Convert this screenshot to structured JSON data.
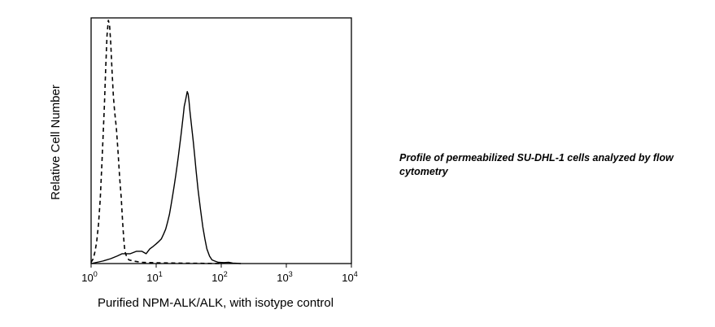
{
  "chart_data": {
    "type": "line",
    "title": "",
    "xlabel": "Purified NPM-ALK/ALK, with isotype control",
    "ylabel": "Relative Cell Number",
    "x_scale": "log",
    "xlim": [
      1,
      10000
    ],
    "ylim": [
      0,
      100
    ],
    "grid": false,
    "legend": "none",
    "x_ticks": [
      {
        "base": "10",
        "exp": "0",
        "value": 1
      },
      {
        "base": "10",
        "exp": "1",
        "value": 10
      },
      {
        "base": "10",
        "exp": "2",
        "value": 100
      },
      {
        "base": "10",
        "exp": "3",
        "value": 1000
      },
      {
        "base": "10",
        "exp": "4",
        "value": 10000
      }
    ],
    "series": [
      {
        "style": "dashed",
        "color": "#000000",
        "points": [
          [
            1.0,
            0.5
          ],
          [
            1.08,
            2
          ],
          [
            1.15,
            5
          ],
          [
            1.22,
            9
          ],
          [
            1.3,
            16
          ],
          [
            1.38,
            26
          ],
          [
            1.45,
            38
          ],
          [
            1.52,
            50
          ],
          [
            1.6,
            64
          ],
          [
            1.68,
            80
          ],
          [
            1.76,
            93
          ],
          [
            1.84,
            99
          ],
          [
            1.92,
            97
          ],
          [
            2.0,
            90
          ],
          [
            2.1,
            78
          ],
          [
            2.2,
            68
          ],
          [
            2.3,
            62
          ],
          [
            2.45,
            55
          ],
          [
            2.6,
            45
          ],
          [
            2.75,
            35
          ],
          [
            2.9,
            27
          ],
          [
            3.0,
            20
          ],
          [
            3.1,
            14
          ],
          [
            3.2,
            9
          ],
          [
            3.3,
            5
          ],
          [
            3.5,
            3
          ],
          [
            3.8,
            1.5
          ],
          [
            4.5,
            1
          ],
          [
            6,
            0.5
          ],
          [
            10,
            0.3
          ],
          [
            20,
            0.2
          ],
          [
            100,
            0
          ]
        ]
      },
      {
        "style": "solid",
        "color": "#000000",
        "points": [
          [
            1.0,
            0
          ],
          [
            1.5,
            1
          ],
          [
            2.0,
            2
          ],
          [
            2.5,
            3
          ],
          [
            3.0,
            4
          ],
          [
            4.0,
            4
          ],
          [
            5.0,
            5
          ],
          [
            6.0,
            5
          ],
          [
            7.0,
            4
          ],
          [
            8.0,
            6
          ],
          [
            9.0,
            7
          ],
          [
            10.0,
            8
          ],
          [
            11.0,
            9
          ],
          [
            12.0,
            10
          ],
          [
            13.0,
            12
          ],
          [
            14.0,
            14
          ],
          [
            15.0,
            17
          ],
          [
            16.0,
            20
          ],
          [
            17.0,
            24
          ],
          [
            18.0,
            28
          ],
          [
            19.0,
            32
          ],
          [
            20.0,
            36
          ],
          [
            21.0,
            40
          ],
          [
            22.0,
            44
          ],
          [
            23.0,
            48
          ],
          [
            24.0,
            52
          ],
          [
            25.0,
            56
          ],
          [
            26.0,
            60
          ],
          [
            27.0,
            64
          ],
          [
            28.0,
            66
          ],
          [
            29.0,
            68
          ],
          [
            30.0,
            70
          ],
          [
            31.0,
            69
          ],
          [
            32.0,
            66
          ],
          [
            33.0,
            62
          ],
          [
            35.0,
            56
          ],
          [
            37.0,
            50
          ],
          [
            39.0,
            44
          ],
          [
            41.0,
            38
          ],
          [
            44.0,
            30
          ],
          [
            48.0,
            22
          ],
          [
            52.0,
            15
          ],
          [
            56.0,
            10
          ],
          [
            60.0,
            6
          ],
          [
            66.0,
            3
          ],
          [
            72.0,
            1.5
          ],
          [
            80.0,
            1
          ],
          [
            90.0,
            0.5
          ],
          [
            110.0,
            0.4
          ],
          [
            130.0,
            0.5
          ],
          [
            150.0,
            0.2
          ],
          [
            200.0,
            0
          ]
        ]
      }
    ]
  },
  "caption": "Profile of permeabilized SU-DHL-1 cells analyzed by flow cytometry"
}
